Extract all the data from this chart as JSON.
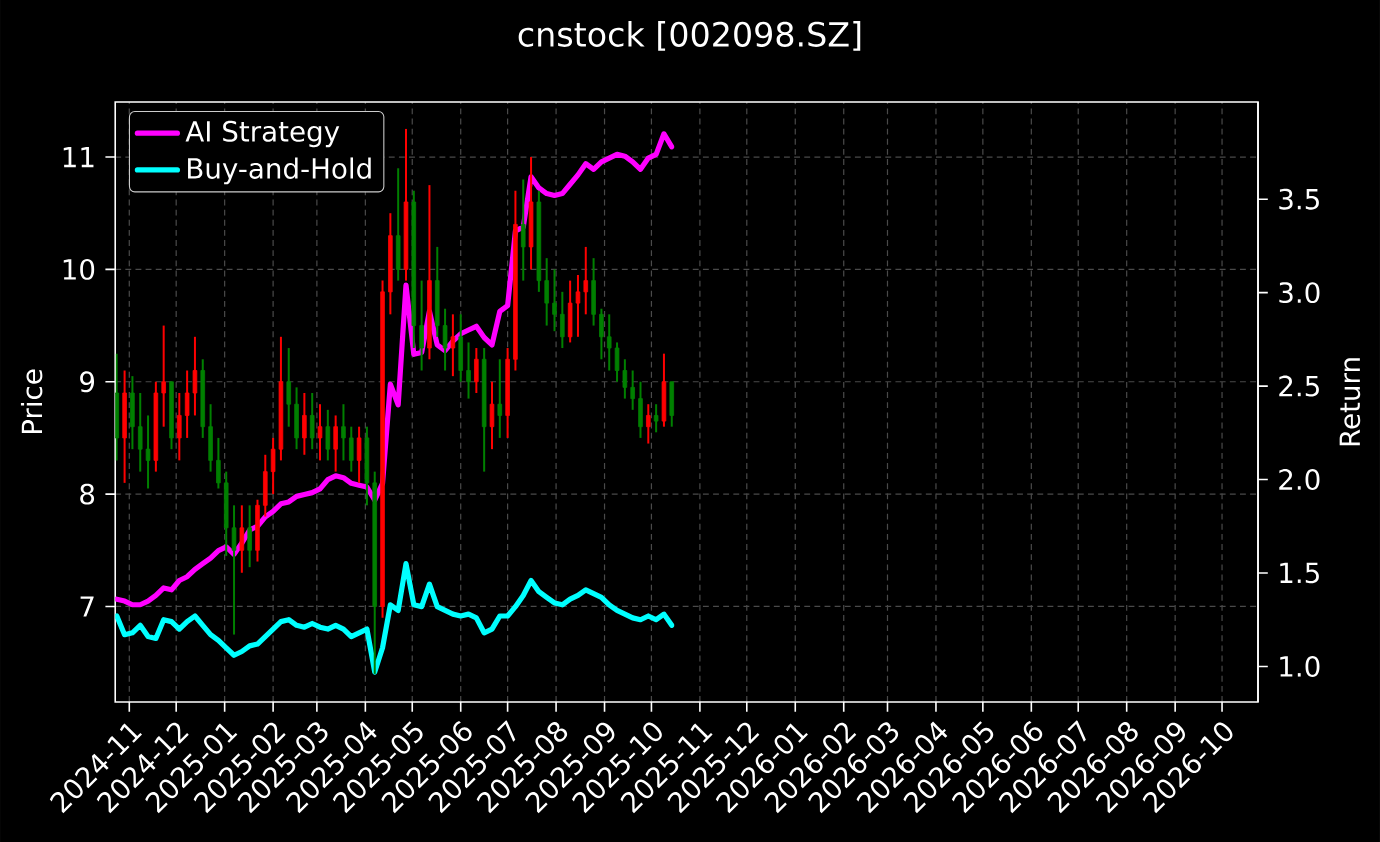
{
  "chart_data": {
    "type": "candlestick",
    "title": "cnstock [002098.SZ]",
    "ylabel": "Price",
    "y2label": "Return",
    "x": [
      "2024-10-24",
      "2024-10-29",
      "2024-11-03",
      "2024-11-08",
      "2024-11-13",
      "2024-11-18",
      "2024-11-23",
      "2024-11-28",
      "2024-12-03",
      "2024-12-08",
      "2024-12-13",
      "2024-12-18",
      "2024-12-23",
      "2024-12-28",
      "2025-01-02",
      "2025-01-07",
      "2025-01-12",
      "2025-01-17",
      "2025-01-22",
      "2025-01-27",
      "2025-02-01",
      "2025-02-06",
      "2025-02-11",
      "2025-02-16",
      "2025-02-21",
      "2025-02-26",
      "2025-03-03",
      "2025-03-08",
      "2025-03-13",
      "2025-03-18",
      "2025-03-23",
      "2025-03-28",
      "2025-04-02",
      "2025-04-07",
      "2025-04-12",
      "2025-04-17",
      "2025-04-22",
      "2025-04-27",
      "2025-05-02",
      "2025-05-07",
      "2025-05-12",
      "2025-05-17",
      "2025-05-22",
      "2025-05-27",
      "2025-06-01",
      "2025-06-06",
      "2025-06-11",
      "2025-06-16",
      "2025-06-21",
      "2025-06-26",
      "2025-07-01",
      "2025-07-06",
      "2025-07-11",
      "2025-07-16",
      "2025-07-21",
      "2025-07-26",
      "2025-07-31",
      "2025-08-05",
      "2025-08-10",
      "2025-08-15",
      "2025-08-20",
      "2025-08-25",
      "2025-08-30",
      "2025-09-04",
      "2025-09-09",
      "2025-09-14",
      "2025-09-19",
      "2025-09-24",
      "2025-09-29",
      "2025-10-04",
      "2025-10-09",
      "2025-10-14"
    ],
    "ohlc": [
      [
        8.9,
        9.25,
        8.3,
        8.5
      ],
      [
        8.5,
        9.1,
        8.1,
        8.9
      ],
      [
        8.9,
        9.05,
        8.4,
        8.6
      ],
      [
        8.6,
        8.9,
        8.2,
        8.4
      ],
      [
        8.4,
        8.7,
        8.05,
        8.3
      ],
      [
        8.3,
        9.0,
        8.2,
        8.9
      ],
      [
        8.9,
        9.5,
        8.6,
        9.0
      ],
      [
        9.0,
        9.0,
        8.4,
        8.5
      ],
      [
        8.5,
        8.9,
        8.3,
        8.7
      ],
      [
        8.7,
        9.1,
        8.5,
        8.9
      ],
      [
        8.9,
        9.4,
        8.7,
        9.1
      ],
      [
        9.1,
        9.2,
        8.5,
        8.6
      ],
      [
        8.6,
        8.8,
        8.2,
        8.3
      ],
      [
        8.3,
        8.5,
        8.05,
        8.1
      ],
      [
        8.1,
        8.2,
        7.45,
        7.7
      ],
      [
        7.7,
        7.9,
        6.75,
        7.5
      ],
      [
        7.5,
        7.9,
        7.3,
        7.7
      ],
      [
        7.7,
        7.9,
        7.35,
        7.5
      ],
      [
        7.5,
        7.95,
        7.4,
        7.9
      ],
      [
        7.9,
        8.35,
        7.8,
        8.2
      ],
      [
        8.2,
        8.5,
        8.0,
        8.4
      ],
      [
        8.4,
        9.4,
        8.3,
        9.0
      ],
      [
        9.0,
        9.3,
        8.6,
        8.8
      ],
      [
        8.8,
        8.95,
        8.4,
        8.5
      ],
      [
        8.5,
        8.9,
        8.35,
        8.7
      ],
      [
        8.7,
        8.9,
        8.4,
        8.5
      ],
      [
        8.5,
        8.8,
        8.3,
        8.6
      ],
      [
        8.6,
        8.75,
        8.3,
        8.4
      ],
      [
        8.4,
        8.7,
        8.2,
        8.6
      ],
      [
        8.6,
        8.8,
        8.3,
        8.5
      ],
      [
        8.5,
        8.6,
        8.2,
        8.3
      ],
      [
        8.3,
        8.6,
        8.1,
        8.5
      ],
      [
        8.5,
        8.6,
        7.9,
        8.1
      ],
      [
        8.1,
        8.2,
        6.4,
        7.0
      ],
      [
        7.0,
        9.9,
        6.9,
        9.8
      ],
      [
        9.8,
        10.5,
        9.6,
        10.3
      ],
      [
        10.3,
        10.9,
        9.9,
        10.0
      ],
      [
        10.0,
        11.25,
        9.9,
        10.6
      ],
      [
        10.6,
        10.7,
        9.3,
        9.5
      ],
      [
        9.5,
        9.9,
        9.1,
        9.3
      ],
      [
        9.3,
        10.75,
        9.2,
        9.9
      ],
      [
        9.9,
        10.2,
        9.4,
        9.5
      ],
      [
        9.5,
        9.65,
        9.1,
        9.3
      ],
      [
        9.3,
        9.6,
        9.05,
        9.4
      ],
      [
        9.4,
        9.6,
        9.0,
        9.1
      ],
      [
        9.1,
        9.35,
        8.85,
        9.0
      ],
      [
        9.0,
        9.3,
        8.9,
        9.2
      ],
      [
        9.2,
        9.3,
        8.2,
        8.6
      ],
      [
        8.6,
        9.0,
        8.4,
        8.8
      ],
      [
        8.8,
        9.2,
        8.5,
        8.7
      ],
      [
        8.7,
        9.3,
        8.5,
        9.2
      ],
      [
        9.2,
        10.7,
        9.1,
        10.4
      ],
      [
        10.4,
        10.8,
        9.9,
        10.2
      ],
      [
        10.2,
        11.0,
        10.0,
        10.6
      ],
      [
        10.6,
        10.7,
        9.8,
        9.9
      ],
      [
        9.9,
        10.1,
        9.5,
        9.7
      ],
      [
        9.7,
        10.0,
        9.45,
        9.6
      ],
      [
        9.6,
        9.8,
        9.3,
        9.4
      ],
      [
        9.4,
        9.9,
        9.35,
        9.7
      ],
      [
        9.7,
        9.95,
        9.4,
        9.8
      ],
      [
        9.8,
        10.2,
        9.6,
        9.9
      ],
      [
        9.9,
        10.1,
        9.5,
        9.6
      ],
      [
        9.6,
        9.65,
        9.2,
        9.4
      ],
      [
        9.4,
        9.6,
        9.1,
        9.3
      ],
      [
        9.3,
        9.35,
        9.0,
        9.1
      ],
      [
        9.1,
        9.2,
        8.85,
        8.95
      ],
      [
        8.95,
        9.1,
        8.75,
        8.85
      ],
      [
        8.85,
        9.0,
        8.5,
        8.6
      ],
      [
        8.6,
        8.8,
        8.45,
        8.7
      ],
      [
        8.7,
        8.8,
        8.55,
        8.65
      ],
      [
        8.65,
        9.25,
        8.6,
        9.0
      ],
      [
        9.0,
        9.0,
        8.6,
        8.7
      ]
    ],
    "colors": [
      "#008000",
      "#ff0000",
      "#008000",
      "#008000",
      "#008000",
      "#ff0000",
      "#ff0000",
      "#008000",
      "#ff0000",
      "#ff0000",
      "#ff0000",
      "#008000",
      "#008000",
      "#008000",
      "#008000",
      "#008000",
      "#ff0000",
      "#008000",
      "#ff0000",
      "#ff0000",
      "#ff0000",
      "#ff0000",
      "#008000",
      "#008000",
      "#ff0000",
      "#008000",
      "#ff0000",
      "#008000",
      "#ff0000",
      "#008000",
      "#008000",
      "#ff0000",
      "#008000",
      "#008000",
      "#ff0000",
      "#ff0000",
      "#008000",
      "#ff0000",
      "#008000",
      "#008000",
      "#ff0000",
      "#008000",
      "#008000",
      "#ff0000",
      "#008000",
      "#008000",
      "#ff0000",
      "#008000",
      "#ff0000",
      "#008000",
      "#ff0000",
      "#ff0000",
      "#008000",
      "#ff0000",
      "#008000",
      "#008000",
      "#008000",
      "#008000",
      "#ff0000",
      "#ff0000",
      "#ff0000",
      "#008000",
      "#008000",
      "#008000",
      "#008000",
      "#008000",
      "#008000",
      "#008000",
      "#ff0000",
      "#008000",
      "#ff0000",
      "#008000"
    ],
    "series": [
      {
        "name": "AI Strategy",
        "type": "line",
        "axis": "y2",
        "color": "#ff00ff",
        "values": [
          1.36,
          1.35,
          1.33,
          1.33,
          1.35,
          1.38,
          1.42,
          1.41,
          1.46,
          1.48,
          1.52,
          1.55,
          1.58,
          1.62,
          1.64,
          1.6,
          1.66,
          1.73,
          1.75,
          1.8,
          1.83,
          1.87,
          1.88,
          1.91,
          1.92,
          1.93,
          1.95,
          2.0,
          2.02,
          2.01,
          1.98,
          1.97,
          1.96,
          1.89,
          1.98,
          2.51,
          2.4,
          3.04,
          2.67,
          2.68,
          2.9,
          2.72,
          2.69,
          2.74,
          2.78,
          2.8,
          2.82,
          2.76,
          2.72,
          2.9,
          2.93,
          3.33,
          3.35,
          3.62,
          3.56,
          3.53,
          3.52,
          3.53,
          3.58,
          3.63,
          3.69,
          3.66,
          3.7,
          3.72,
          3.74,
          3.73,
          3.7,
          3.66,
          3.72,
          3.74,
          3.85,
          3.78
        ]
      },
      {
        "name": "Buy-and-Hold",
        "type": "line",
        "axis": "y2",
        "color": "#00ffff",
        "values": [
          1.27,
          1.17,
          1.18,
          1.22,
          1.16,
          1.15,
          1.25,
          1.24,
          1.2,
          1.24,
          1.27,
          1.22,
          1.17,
          1.14,
          1.1,
          1.06,
          1.08,
          1.11,
          1.12,
          1.16,
          1.2,
          1.24,
          1.25,
          1.22,
          1.21,
          1.23,
          1.21,
          1.2,
          1.22,
          1.2,
          1.16,
          1.18,
          1.2,
          0.97,
          1.1,
          1.33,
          1.3,
          1.55,
          1.33,
          1.32,
          1.44,
          1.32,
          1.3,
          1.28,
          1.27,
          1.28,
          1.26,
          1.18,
          1.2,
          1.27,
          1.27,
          1.32,
          1.38,
          1.46,
          1.4,
          1.37,
          1.34,
          1.33,
          1.36,
          1.38,
          1.41,
          1.39,
          1.37,
          1.33,
          1.3,
          1.28,
          1.26,
          1.25,
          1.27,
          1.25,
          1.28,
          1.22
        ]
      }
    ],
    "xlim": [
      "2024-10-23",
      "2026-10-24"
    ],
    "xticks": [
      {
        "value": "2024-11-01",
        "label": "2024-11"
      },
      {
        "value": "2024-12-01",
        "label": "2024-12"
      },
      {
        "value": "2025-01-01",
        "label": "2025-01"
      },
      {
        "value": "2025-02-01",
        "label": "2025-02"
      },
      {
        "value": "2025-03-01",
        "label": "2025-03"
      },
      {
        "value": "2025-04-01",
        "label": "2025-04"
      },
      {
        "value": "2025-05-01",
        "label": "2025-05"
      },
      {
        "value": "2025-06-01",
        "label": "2025-06"
      },
      {
        "value": "2025-07-01",
        "label": "2025-07"
      },
      {
        "value": "2025-08-01",
        "label": "2025-08"
      },
      {
        "value": "2025-09-01",
        "label": "2025-09"
      },
      {
        "value": "2025-10-01",
        "label": "2025-10"
      },
      {
        "value": "2025-11-01",
        "label": "2025-11"
      },
      {
        "value": "2025-12-01",
        "label": "2025-12"
      },
      {
        "value": "2026-01-01",
        "label": "2026-01"
      },
      {
        "value": "2026-02-01",
        "label": "2026-02"
      },
      {
        "value": "2026-03-01",
        "label": "2026-03"
      },
      {
        "value": "2026-04-01",
        "label": "2026-04"
      },
      {
        "value": "2026-05-01",
        "label": "2026-05"
      },
      {
        "value": "2026-06-01",
        "label": "2026-06"
      },
      {
        "value": "2026-07-01",
        "label": "2026-07"
      },
      {
        "value": "2026-08-01",
        "label": "2026-08"
      },
      {
        "value": "2026-09-01",
        "label": "2026-09"
      },
      {
        "value": "2026-10-01",
        "label": "2026-10"
      }
    ],
    "ylim": [
      6.15,
      11.49
    ],
    "yticks": [
      7,
      8,
      9,
      10,
      11
    ],
    "y2lim": [
      0.81,
      4.02
    ],
    "y2ticks": [
      {
        "value": 1,
        "label": "1.0"
      },
      1.5,
      {
        "value": 2,
        "label": "2.0"
      },
      2.5,
      {
        "value": 3,
        "label": "3.0"
      },
      3.5
    ],
    "grid": true,
    "legend": "top left"
  }
}
